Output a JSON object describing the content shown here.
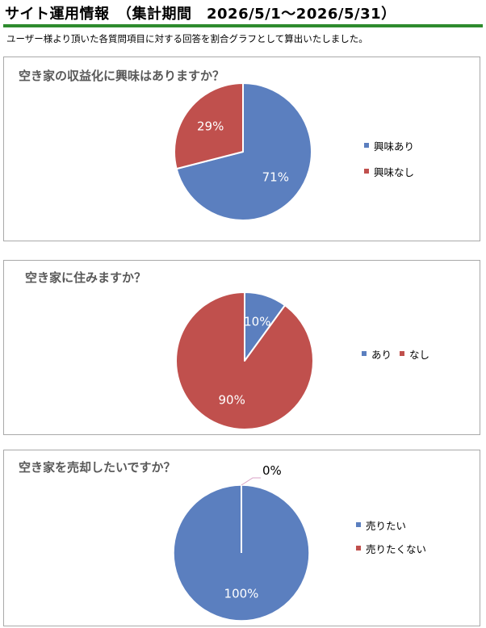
{
  "header": {
    "title": "サイト運用情報　（集計期間　2026/5/1～2026/5/31）",
    "description": "ユーザー様より頂いた各質問項目に対する回答を割合グラフとして算出いたしました。"
  },
  "colors": {
    "blue": "#5b7fbf",
    "red": "#c0504d",
    "accent": "#2e8b2e"
  },
  "chart_data": [
    {
      "type": "pie",
      "title": "空き家の収益化に興味はありますか？",
      "categories": [
        "興味あり",
        "興味なし"
      ],
      "values": [
        71,
        29
      ],
      "labels": [
        "71%",
        "29%"
      ],
      "legend": "right"
    },
    {
      "type": "pie",
      "title": "空き家に住みますか？",
      "categories": [
        "あり",
        "なし"
      ],
      "values": [
        10,
        90
      ],
      "labels": [
        "10%",
        "90%"
      ],
      "legend": "right"
    },
    {
      "type": "pie",
      "title": "空き家を売却したいですか？",
      "categories": [
        "売りたい",
        "売りたくない"
      ],
      "values": [
        100,
        0
      ],
      "labels": [
        "100%",
        "0%"
      ],
      "legend": "right"
    }
  ]
}
